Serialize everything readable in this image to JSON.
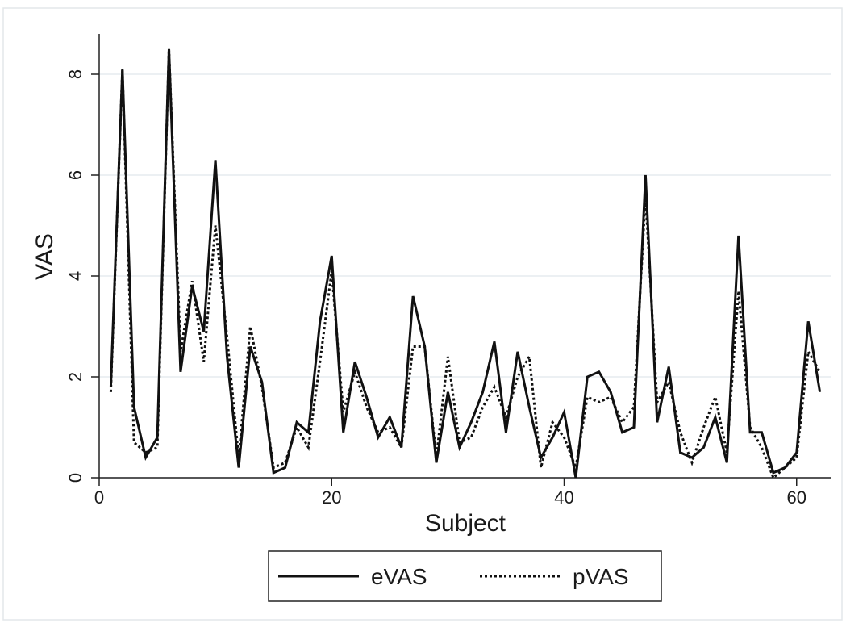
{
  "chart_data": {
    "type": "line",
    "title": "",
    "xlabel": "Subject",
    "ylabel": "VAS",
    "xlim": [
      0,
      63
    ],
    "ylim": [
      0,
      8.8
    ],
    "xticks": [
      0,
      20,
      40,
      60
    ],
    "yticks": [
      0,
      2,
      4,
      6,
      8
    ],
    "grid": "horizontal",
    "legend_position": "bottom",
    "x": [
      1,
      2,
      3,
      4,
      5,
      6,
      7,
      8,
      9,
      10,
      11,
      12,
      13,
      14,
      15,
      16,
      17,
      18,
      19,
      20,
      21,
      22,
      23,
      24,
      25,
      26,
      27,
      28,
      29,
      30,
      31,
      32,
      33,
      34,
      35,
      36,
      37,
      38,
      39,
      40,
      41,
      42,
      43,
      44,
      45,
      46,
      47,
      48,
      49,
      50,
      51,
      52,
      53,
      54,
      55,
      56,
      57,
      58,
      59,
      60,
      61,
      62
    ],
    "series": [
      {
        "name": "eVAS",
        "style": "solid",
        "color": "#111111",
        "values": [
          1.8,
          8.1,
          1.4,
          0.4,
          0.8,
          8.5,
          2.1,
          3.8,
          2.9,
          6.3,
          2.4,
          0.2,
          2.6,
          1.9,
          0.1,
          0.2,
          1.1,
          0.9,
          3.1,
          4.4,
          0.9,
          2.3,
          1.6,
          0.8,
          1.2,
          0.6,
          3.6,
          2.6,
          0.3,
          1.7,
          0.6,
          1.1,
          1.7,
          2.7,
          0.9,
          2.5,
          1.4,
          0.4,
          0.8,
          1.3,
          0.0,
          2.0,
          2.1,
          1.7,
          0.9,
          1.0,
          6.0,
          1.1,
          2.2,
          0.5,
          0.4,
          0.6,
          1.2,
          0.3,
          4.8,
          0.9,
          0.9,
          0.1,
          0.2,
          0.5,
          3.1,
          1.7
        ]
      },
      {
        "name": "pVAS",
        "style": "dotted",
        "color": "#111111",
        "values": [
          1.7,
          8.1,
          0.7,
          0.5,
          0.6,
          8.5,
          2.5,
          3.9,
          2.3,
          5.0,
          2.8,
          0.4,
          3.0,
          1.8,
          0.2,
          0.3,
          1.0,
          0.6,
          2.3,
          4.1,
          1.3,
          2.1,
          1.4,
          0.9,
          1.0,
          0.6,
          2.6,
          2.6,
          0.4,
          2.4,
          0.7,
          0.8,
          1.4,
          1.8,
          1.2,
          2.0,
          2.4,
          0.2,
          1.1,
          0.8,
          0.2,
          1.6,
          1.5,
          1.6,
          1.1,
          1.4,
          5.6,
          1.5,
          1.9,
          0.9,
          0.3,
          1.0,
          1.6,
          0.5,
          3.7,
          1.0,
          0.6,
          0.0,
          0.2,
          0.4,
          2.5,
          2.1
        ]
      }
    ]
  }
}
